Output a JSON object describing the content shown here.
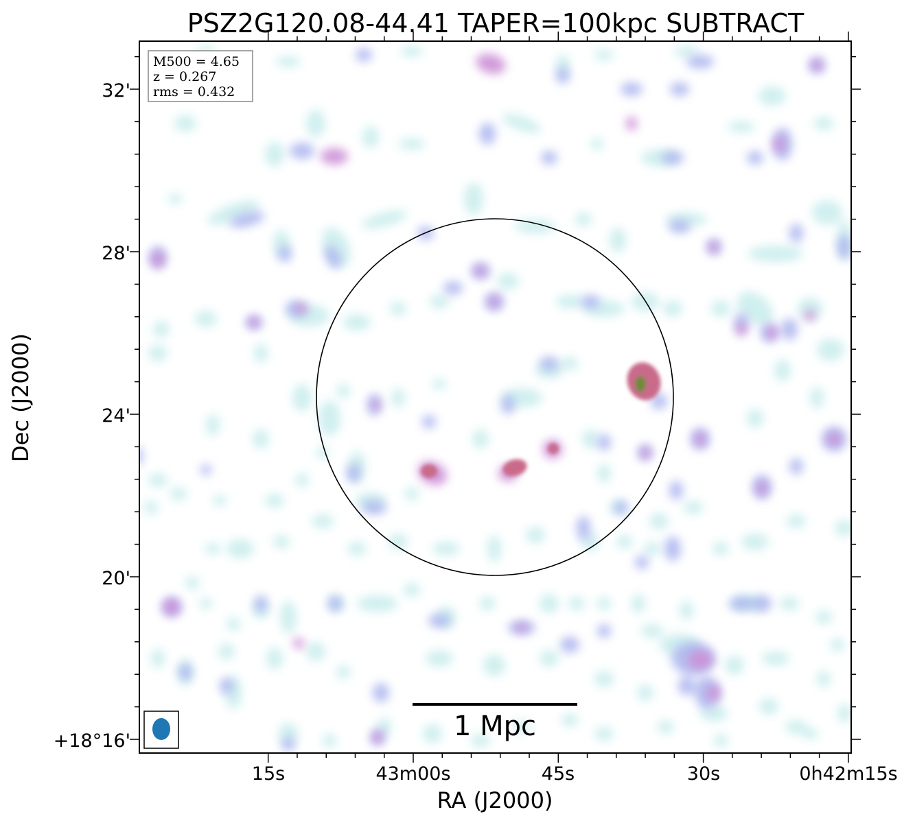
{
  "title": "PSZ2G120.08-44.41 TAPER=100kpc SUBTRACT",
  "axes": {
    "xlabel": "RA (J2000)",
    "ylabel": "Dec (J2000)",
    "x_ticks": [
      "15s",
      "43m00s",
      "45s",
      "30s",
      "0h42m15s"
    ],
    "y_ticks": [
      "32'",
      "28'",
      "24'",
      "20'",
      "+18°16'"
    ]
  },
  "info_box": {
    "line1": "M500 = 4.65",
    "line2": "z = 0.267",
    "line3": "rms = 0.432"
  },
  "scale_bar": {
    "label": "1 Mpc"
  },
  "colors": {
    "emission_low": "#c8ecec",
    "emission_mid": "#aab4ee",
    "emission_high": "#cc8fd6",
    "emission_peak": "#c96a8a",
    "source_core": "#6f8a3a",
    "beam": "#1f77b4"
  }
}
